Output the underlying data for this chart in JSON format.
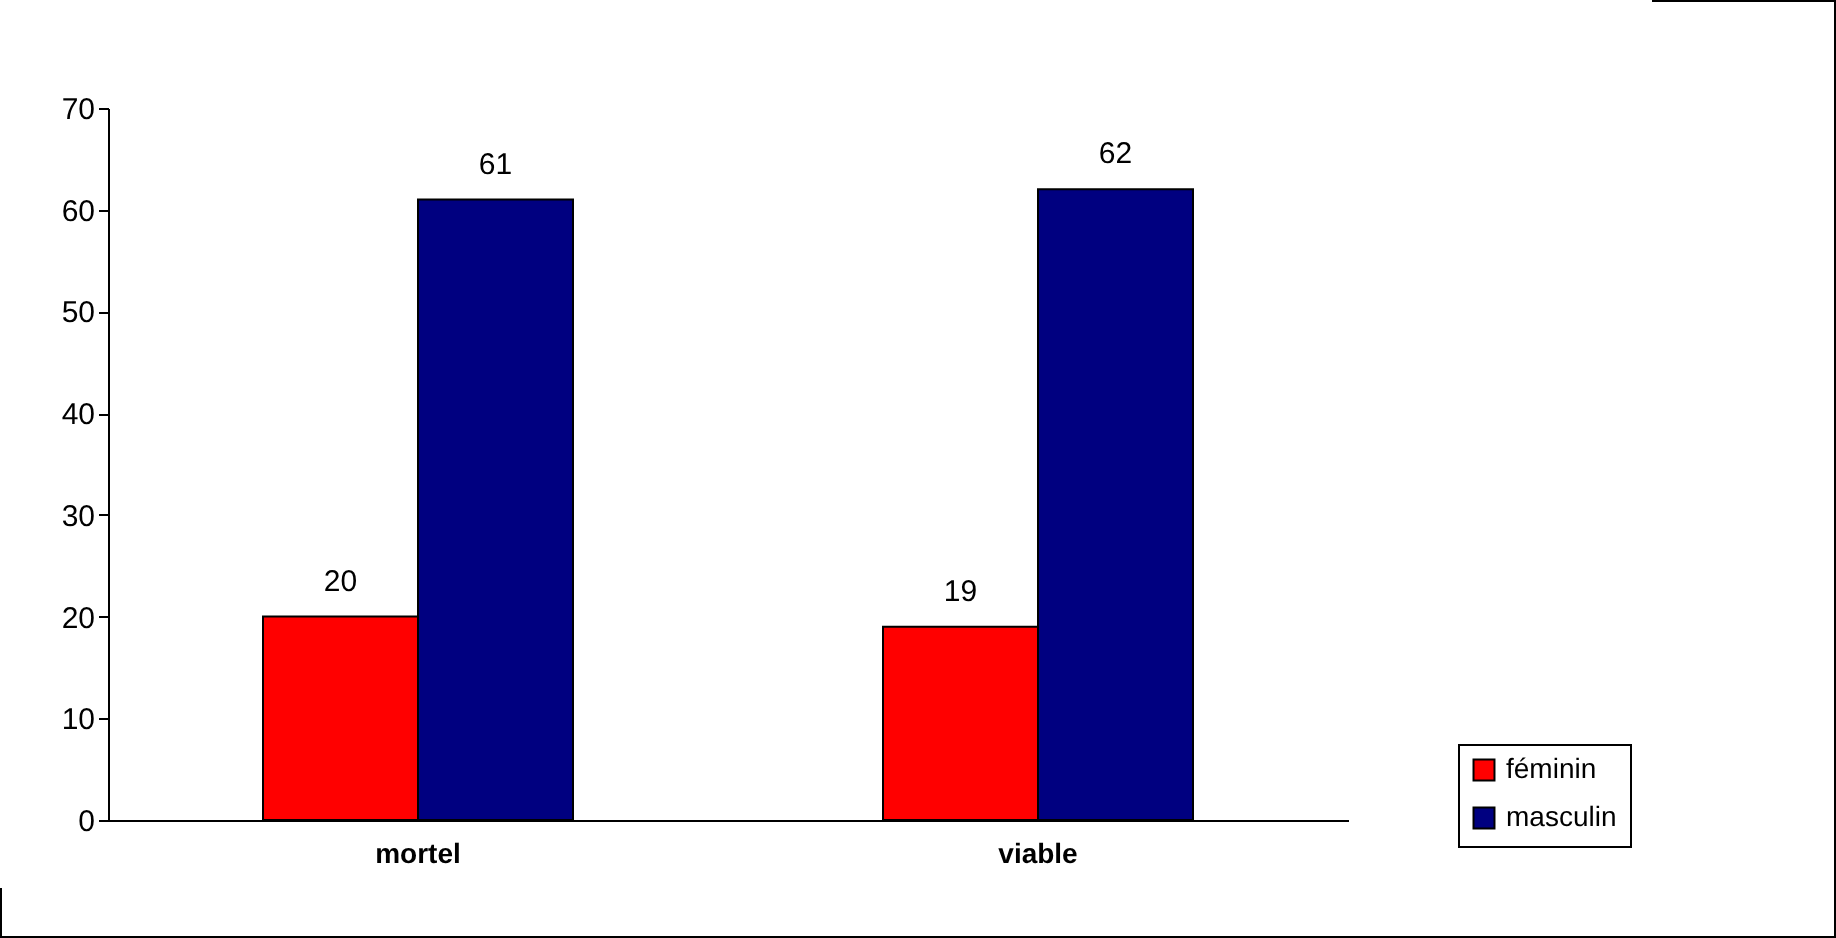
{
  "chart_data": {
    "type": "bar",
    "categories": [
      "mortel",
      "viable"
    ],
    "series": [
      {
        "name": "féminin",
        "color": "#ff0000",
        "values": [
          20,
          19
        ]
      },
      {
        "name": "masculin",
        "color": "#000080",
        "values": [
          61,
          62
        ]
      }
    ],
    "ylim": [
      0,
      70
    ],
    "yticks": [
      0,
      10,
      20,
      30,
      40,
      50,
      60,
      70
    ],
    "grid": false,
    "legend": "bottom right",
    "data_labels": true
  }
}
